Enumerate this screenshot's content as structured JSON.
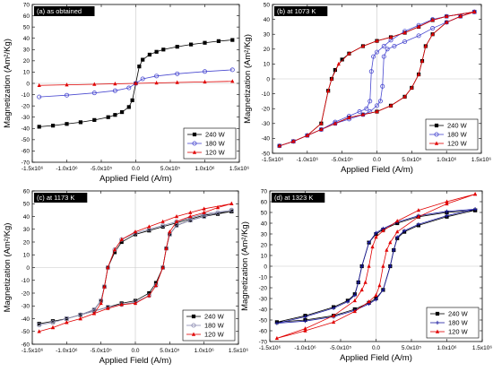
{
  "chart_data": [
    {
      "type": "line",
      "title": "(a) as obtained",
      "xlabel": "Applied Field (A/m)",
      "ylabel": "Magnetization (Am2/Kg)",
      "xlim": [
        -1500000,
        1500000
      ],
      "ylim": [
        -70,
        70
      ],
      "xticks": [
        -1500000,
        -1000000,
        -500000,
        0,
        500000,
        1000000,
        1500000
      ],
      "yticks": [
        -70,
        -60,
        -50,
        -40,
        -30,
        -20,
        -10,
        0,
        10,
        20,
        30,
        40,
        50,
        60,
        70
      ],
      "grid": false,
      "legend_position": "bottom-right",
      "series": [
        {
          "name": "240 W",
          "color": "#000000",
          "marker": "square",
          "x": [
            -1400000,
            -1200000,
            -1000000,
            -800000,
            -600000,
            -400000,
            -300000,
            -200000,
            -100000,
            -50000,
            0,
            50000,
            100000,
            200000,
            300000,
            400000,
            600000,
            800000,
            1000000,
            1200000,
            1400000
          ],
          "y": [
            -38.5,
            -37.5,
            -36,
            -34.5,
            -32.5,
            -30,
            -28,
            -25.5,
            -21,
            -15,
            0,
            15,
            21,
            25.5,
            28,
            30,
            32.5,
            34.5,
            36,
            37.5,
            38.5
          ]
        },
        {
          "name": "180 W",
          "color": "#4a4ad0",
          "marker": "circle-open",
          "x": [
            -1400000,
            -1000000,
            -600000,
            -300000,
            -100000,
            0,
            100000,
            300000,
            600000,
            1000000,
            1400000
          ],
          "y": [
            -12,
            -10.5,
            -8.5,
            -6.5,
            -4,
            0,
            4,
            6.5,
            8.5,
            10.5,
            12
          ]
        },
        {
          "name": "120 W",
          "color": "#e00000",
          "marker": "triangle",
          "x": [
            -1400000,
            -1000000,
            -600000,
            -300000,
            0,
            300000,
            600000,
            1000000,
            1400000
          ],
          "y": [
            -1.8,
            -1.3,
            -0.8,
            -0.4,
            0,
            0.4,
            0.8,
            1.3,
            1.8
          ]
        }
      ]
    },
    {
      "type": "line",
      "title": "(b) at 1073 K",
      "xlabel": "Applied Field (A/m)",
      "ylabel": "Magnetization (Am2/Kg)",
      "xlim": [
        -1500000,
        1500000
      ],
      "ylim": [
        -50,
        50
      ],
      "xticks": [
        -1500000,
        -1000000,
        -500000,
        0,
        500000,
        1000000,
        1500000
      ],
      "yticks": [
        -50,
        -40,
        -30,
        -20,
        -10,
        0,
        10,
        20,
        30,
        40,
        50
      ],
      "grid": false,
      "legend_position": "bottom-right",
      "series": [
        {
          "name": "240 W",
          "color": "#000000",
          "marker": "square",
          "x": [
            1400000,
            1000000,
            800000,
            600000,
            400000,
            200000,
            0,
            -200000,
            -400000,
            -500000,
            -600000,
            -650000,
            -700000,
            -800000,
            -1000000,
            -1200000,
            -1400000,
            -1200000,
            -1000000,
            -800000,
            -600000,
            -400000,
            -200000,
            0,
            200000,
            400000,
            500000,
            600000,
            650000,
            700000,
            800000,
            1000000,
            1200000,
            1400000
          ],
          "y": [
            45,
            42,
            39.5,
            35,
            31,
            28,
            25.5,
            22,
            17,
            13,
            6,
            0,
            -8,
            -30,
            -38,
            -42,
            -45,
            -42,
            -38,
            -34,
            -30,
            -26,
            -24,
            -22,
            -18,
            -12,
            -6,
            3,
            12,
            22,
            30,
            38,
            42,
            45
          ]
        },
        {
          "name": "180 W",
          "color": "#4a4ad0",
          "marker": "circle-open",
          "x": [
            1400000,
            1000000,
            800000,
            600000,
            400000,
            200000,
            100000,
            0,
            -50000,
            -80000,
            -100000,
            -150000,
            -250000,
            -400000,
            -600000,
            -800000,
            -1000000,
            -1200000,
            -1400000,
            -1200000,
            -1000000,
            -800000,
            -600000,
            -400000,
            -200000,
            -100000,
            0,
            50000,
            80000,
            100000,
            150000,
            250000,
            400000,
            600000,
            800000,
            1000000,
            1200000,
            1400000
          ],
          "y": [
            45,
            42,
            40,
            36,
            32,
            26,
            22,
            18,
            15,
            5,
            -15,
            -20,
            -22,
            -25,
            -29,
            -34,
            -38,
            -42,
            -45,
            -42,
            -38,
            -34,
            -30,
            -27,
            -24,
            -22,
            -18,
            -15,
            -5,
            15,
            20,
            22,
            25,
            29,
            34,
            38,
            42,
            45
          ]
        },
        {
          "name": "120 W",
          "color": "#e00000",
          "marker": "triangle",
          "x": [
            1400000,
            1000000,
            800000,
            600000,
            400000,
            200000,
            0,
            -200000,
            -400000,
            -550000,
            -650000,
            -700000,
            -800000,
            -1000000,
            -1200000,
            -1400000,
            -1200000,
            -1000000,
            -800000,
            -600000,
            -400000,
            -200000,
            0,
            200000,
            400000,
            500000,
            600000,
            650000,
            700000,
            800000,
            1000000,
            1200000,
            1400000
          ],
          "y": [
            45,
            42,
            39.5,
            35,
            31,
            28,
            25.5,
            22,
            17,
            10,
            0,
            -8,
            -30,
            -38,
            -42,
            -45,
            -42,
            -38,
            -34,
            -30,
            -26,
            -24,
            -22,
            -18,
            -12,
            -6,
            3,
            12,
            22,
            30,
            38,
            42,
            45
          ]
        }
      ]
    },
    {
      "type": "line",
      "title": "(c) at 1173 K",
      "xlabel": "Applied Field (A/m)",
      "ylabel": "Magnetization (Am2/Kg)",
      "xlim": [
        -1500000,
        1500000
      ],
      "ylim": [
        -60,
        60
      ],
      "xticks": [
        -1500000,
        -1000000,
        -500000,
        0,
        500000,
        1000000,
        1500000
      ],
      "yticks": [
        -60,
        -50,
        -40,
        -30,
        -20,
        -10,
        0,
        10,
        20,
        30,
        40,
        50,
        60
      ],
      "grid": false,
      "legend_position": "bottom-right",
      "series": [
        {
          "name": "240 W",
          "color": "#000000",
          "marker": "square",
          "x": [
            1400000,
            1000000,
            800000,
            600000,
            400000,
            200000,
            0,
            -200000,
            -300000,
            -400000,
            -450000,
            -500000,
            -600000,
            -800000,
            -1000000,
            -1200000,
            -1400000,
            -1200000,
            -1000000,
            -800000,
            -600000,
            -400000,
            -200000,
            0,
            200000,
            300000,
            400000,
            450000,
            500000,
            600000,
            800000,
            1000000,
            1200000,
            1400000
          ],
          "y": [
            44,
            41,
            38,
            35,
            32,
            29,
            26,
            20,
            12,
            0,
            -15,
            -26,
            -33,
            -37,
            -40,
            -42,
            -44,
            -42,
            -40,
            -37,
            -34,
            -31,
            -28,
            -26,
            -20,
            -12,
            0,
            15,
            26,
            33,
            37,
            40,
            42,
            44
          ]
        },
        {
          "name": "180 W",
          "color": "#8a8ab0",
          "marker": "circle-open",
          "x": [
            1400000,
            1000000,
            800000,
            600000,
            400000,
            200000,
            0,
            -200000,
            -300000,
            -400000,
            -450000,
            -500000,
            -600000,
            -800000,
            -1000000,
            -1200000,
            -1400000,
            -1200000,
            -1000000,
            -800000,
            -600000,
            -400000,
            -200000,
            0,
            200000,
            300000,
            400000,
            450000,
            500000,
            600000,
            800000,
            1000000,
            1200000,
            1400000
          ],
          "y": [
            45,
            42,
            39,
            36,
            33,
            30,
            27,
            22,
            14,
            0,
            -15,
            -26,
            -33,
            -37,
            -40,
            -43,
            -45,
            -43,
            -40,
            -37,
            -34,
            -31,
            -29,
            -27,
            -22,
            -14,
            0,
            15,
            26,
            33,
            37,
            40,
            43,
            45
          ]
        },
        {
          "name": "120 W",
          "color": "#e00000",
          "marker": "triangle",
          "x": [
            1400000,
            1000000,
            800000,
            600000,
            400000,
            200000,
            0,
            -200000,
            -300000,
            -400000,
            -450000,
            -500000,
            -600000,
            -800000,
            -1000000,
            -1200000,
            -1400000,
            -1200000,
            -1000000,
            -800000,
            -600000,
            -400000,
            -200000,
            0,
            200000,
            300000,
            400000,
            450000,
            500000,
            600000,
            800000,
            1000000,
            1200000,
            1400000
          ],
          "y": [
            50,
            46,
            43,
            40,
            36,
            32,
            28,
            22,
            14,
            0,
            -15,
            -28,
            -36,
            -40,
            -43,
            -47,
            -50,
            -47,
            -43,
            -40,
            -36,
            -32,
            -29,
            -28,
            -22,
            -14,
            0,
            15,
            28,
            36,
            40,
            43,
            47,
            50
          ]
        }
      ]
    },
    {
      "type": "line",
      "title": "(d) at 1323 K",
      "xlabel": "Applied Field (A/m)",
      "ylabel": "Magnetization (Am2/Kg)",
      "xlim": [
        -1500000,
        1500000
      ],
      "ylim": [
        -70,
        70
      ],
      "xticks": [
        -1500000,
        -1000000,
        -500000,
        0,
        500000,
        1000000,
        1500000
      ],
      "yticks": [
        -70,
        -60,
        -50,
        -40,
        -30,
        -20,
        -10,
        0,
        10,
        20,
        30,
        40,
        50,
        60,
        70
      ],
      "grid": false,
      "legend_position": "bottom-right",
      "series": [
        {
          "name": "240 W",
          "color": "#000000",
          "marker": "square",
          "x": [
            1400000,
            1000000,
            600000,
            300000,
            100000,
            0,
            -100000,
            -200000,
            -250000,
            -300000,
            -400000,
            -600000,
            -1000000,
            -1400000,
            -1000000,
            -600000,
            -300000,
            -100000,
            0,
            100000,
            200000,
            250000,
            300000,
            400000,
            600000,
            1000000,
            1400000
          ],
          "y": [
            52,
            50,
            46,
            40,
            34,
            30,
            22,
            0,
            -15,
            -26,
            -32,
            -38,
            -46,
            -52,
            -50,
            -46,
            -40,
            -34,
            -30,
            -22,
            0,
            15,
            26,
            32,
            38,
            46,
            52
          ]
        },
        {
          "name": "180 W",
          "color": "#1a1aa0",
          "marker": "plus",
          "x": [
            1400000,
            1000000,
            600000,
            300000,
            100000,
            0,
            -100000,
            -200000,
            -250000,
            -300000,
            -400000,
            -600000,
            -1000000,
            -1400000,
            -1000000,
            -600000,
            -300000,
            -100000,
            0,
            100000,
            200000,
            250000,
            300000,
            400000,
            600000,
            1000000,
            1400000
          ],
          "y": [
            53,
            51,
            47,
            41,
            35,
            31,
            22,
            0,
            -15,
            -27,
            -33,
            -39,
            -47,
            -53,
            -51,
            -47,
            -41,
            -35,
            -31,
            -22,
            0,
            15,
            27,
            33,
            39,
            47,
            53
          ]
        },
        {
          "name": "120 W",
          "color": "#e00000",
          "marker": "triangle",
          "x": [
            1400000,
            1000000,
            600000,
            300000,
            100000,
            0,
            -50000,
            -100000,
            -150000,
            -200000,
            -300000,
            -600000,
            -1000000,
            -1400000,
            -1000000,
            -600000,
            -300000,
            -100000,
            0,
            50000,
            100000,
            150000,
            200000,
            300000,
            600000,
            1000000,
            1400000
          ],
          "y": [
            67,
            60,
            52,
            42,
            33,
            27,
            18,
            0,
            -15,
            -22,
            -32,
            -46,
            -58,
            -67,
            -60,
            -52,
            -42,
            -33,
            -27,
            -18,
            0,
            15,
            22,
            32,
            46,
            58,
            67
          ]
        }
      ]
    }
  ]
}
